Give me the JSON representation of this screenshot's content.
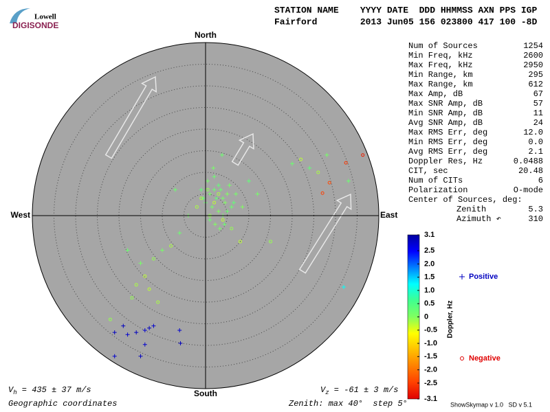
{
  "logo": {
    "top": "Lowell",
    "bottom": "DIGISONDE"
  },
  "header": {
    "row1": "STATION NAME    YYYY DATE  DDD HHMMSS AXN PPS IGP",
    "row2": "Fairford        2013 Jun05 156 023800 417 100 -8D"
  },
  "stats": {
    "rows": [
      [
        "Num of Sources",
        "1254"
      ],
      [
        "Min Freq, kHz",
        "2600"
      ],
      [
        "Max Freq, kHz",
        "2950"
      ],
      [
        "Min Range, km",
        "295"
      ],
      [
        "Max Range, km",
        "612"
      ],
      [
        "Max Amp, dB",
        "67"
      ],
      [
        "Max SNR Amp, dB",
        "57"
      ],
      [
        "Min SNR Amp, dB",
        "11"
      ],
      [
        "Avg SNR Amp, dB",
        "24"
      ],
      [
        "Max RMS Err, deg",
        "12.0"
      ],
      [
        "Min RMS Err, deg",
        "0.0"
      ],
      [
        "Avg RMS Err, deg",
        "2.1"
      ],
      [
        "Doppler Res, Hz",
        "0.0488"
      ],
      [
        "CIT, sec",
        "20.48"
      ],
      [
        "Num of CITs",
        "6"
      ],
      [
        "Polarization",
        "O-mode"
      ]
    ],
    "center_title": "Center of Sources, deg:",
    "center_rows": [
      [
        "Zenith",
        "5.3"
      ],
      [
        "Azimuth ↶",
        "310"
      ]
    ]
  },
  "footer": {
    "vh": {
      "symbol": "V",
      "sub": "h",
      "text": " = 435 ± 37 m/s"
    },
    "vz": {
      "symbol": "V",
      "sub": "z",
      "text": " = -61 ± 3 m/s"
    },
    "coords": "Geographic coordinates",
    "zenith": "Zenith: max 40°  step 5°",
    "version": "ShowSkymap v 1.0   SD v 5.1"
  },
  "chart_data": {
    "type": "skymap",
    "directions": {
      "north": "North",
      "south": "South",
      "east": "East",
      "west": "West"
    },
    "rlim": [
      0,
      40
    ],
    "rticks": [
      5,
      10,
      15,
      20,
      25,
      30,
      35
    ],
    "colorbar": {
      "title": "Doppler, Hz",
      "clim": [
        -3.1,
        3.1
      ],
      "colors": [
        "#e00000",
        "#ff4000",
        "#ff8000",
        "#ffc000",
        "#ffff00",
        "#80ff60",
        "#40ff90",
        "#00ffff",
        "#0080ff",
        "#0000ff",
        "#0000a0"
      ],
      "ticks": [
        3.1,
        2.5,
        {
          "value": 2,
          "label": "2.0"
        },
        1.5,
        {
          "value": 1,
          "label": "1.0"
        },
        0.5,
        0,
        -0.5,
        {
          "value": -1,
          "label": "-1.0"
        },
        -1.5,
        {
          "value": -2,
          "label": "-2.0"
        },
        -2.5,
        -3.1
      ]
    },
    "series": [
      {
        "name": "Positive",
        "marker": "plus",
        "color": "#0000c0",
        "x": [
          1,
          2,
          3,
          4,
          5,
          0,
          1.5,
          2.5,
          3.5,
          4.5,
          5.5,
          6,
          -0.5,
          0.5,
          2,
          3,
          4,
          5,
          6.5,
          7,
          1,
          2.2,
          3.3,
          4.4,
          -1,
          1.8,
          3.8,
          8.5,
          -4,
          -7,
          10,
          12,
          -6,
          -10,
          20,
          24,
          28,
          33,
          -15,
          -18,
          -21,
          -18,
          -16,
          -14,
          -13,
          -12,
          -19,
          -6,
          -5.8,
          -21,
          -15,
          -14,
          31.9
        ],
        "y": [
          5,
          6,
          7,
          4,
          5,
          3,
          2,
          4,
          6,
          3,
          7,
          2,
          4,
          8,
          9,
          1,
          0,
          1,
          3,
          5,
          -1,
          -2,
          -3,
          -2,
          6,
          11,
          14,
          2,
          0,
          6,
          8,
          5,
          -4,
          -8,
          12,
          11,
          14,
          8,
          -11,
          -8,
          -27,
          -27.5,
          -27,
          -26.5,
          -26,
          -25.5,
          -25.5,
          -26.5,
          -29.5,
          -32.5,
          -32.5,
          -29.8,
          -16.5
        ],
        "doppler": [
          0.1,
          0.2,
          0.3,
          0.1,
          0,
          0.2,
          0.1,
          0.3,
          0.2,
          0,
          0.1,
          0.2,
          0.3,
          0.1,
          0.2,
          0,
          0.1,
          0.2,
          0.3,
          0.1,
          0.2,
          0,
          0.1,
          0.2,
          0.3,
          0.1,
          0.2,
          0,
          0.1,
          0.2,
          0.3,
          0.1,
          0.2,
          0.1,
          0.2,
          0.3,
          0.1,
          0.2,
          0.1,
          0.2,
          2.9,
          2.8,
          2.9,
          2.8,
          2.9,
          2.8,
          2.9,
          2.8,
          2.9,
          2.8,
          2.9,
          2.8,
          1.2
        ]
      },
      {
        "name": "Negative",
        "marker": "circle",
        "color": "#e00000",
        "x": [
          -1,
          0.5,
          2,
          3,
          1,
          4,
          -2,
          6,
          8,
          -8,
          -12,
          -14,
          -16,
          -17,
          -13,
          -11,
          -22,
          22,
          26,
          15,
          32.4,
          36.3,
          28.6,
          27
        ],
        "y": [
          4,
          6,
          3,
          5,
          0,
          -1,
          2,
          -3,
          -6,
          -7,
          -10,
          -14,
          -16,
          -19,
          -17,
          -20,
          -24,
          13,
          10,
          -6,
          12.2,
          14,
          7.6,
          5.2
        ],
        "doppler": [
          -0.2,
          -0.1,
          -0.3,
          -0.2,
          -0.1,
          -0.3,
          -0.2,
          -0.1,
          -0.3,
          -0.2,
          -0.1,
          -0.3,
          -0.2,
          -0.1,
          -0.3,
          -0.2,
          -0.1,
          -0.3,
          -0.2,
          -0.1,
          -2.6,
          -2.8,
          -2.4,
          -2.5
        ]
      }
    ]
  }
}
